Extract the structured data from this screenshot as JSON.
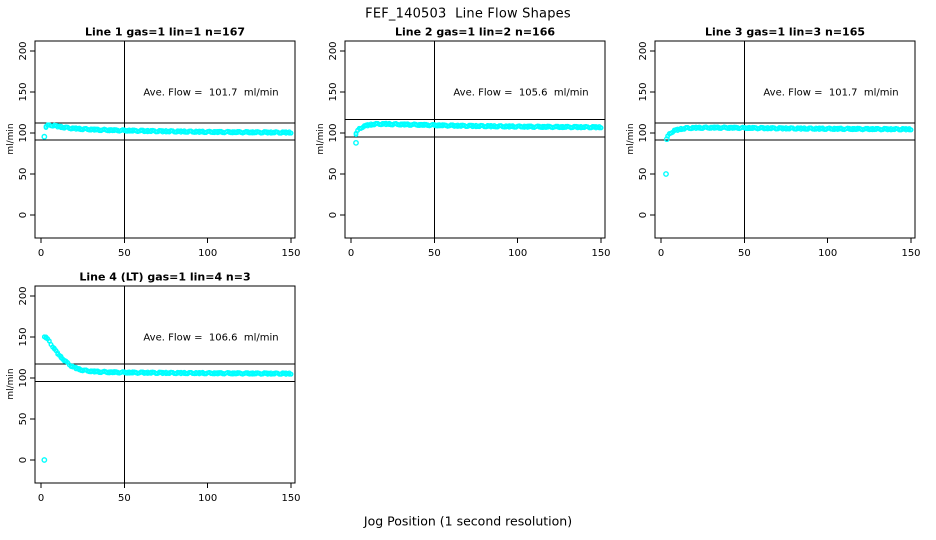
{
  "page": {
    "main_title": "FEF_140503  Line Flow Shapes",
    "x_axis_label": "Jog Position (1 second resolution)"
  },
  "colors": {
    "point": "#00ffff",
    "axis": "#000000",
    "background": "#ffffff",
    "text": "#000000"
  },
  "chart_data": [
    {
      "type": "scatter",
      "title": "Line 1 gas=1 lin=1 n=167",
      "annotation": "Ave. Flow =  101.7  ml/min",
      "ave_flow": 101.7,
      "ylabel": "ml/min",
      "row": 0,
      "col": 0,
      "xlim": [
        0,
        150
      ],
      "ylim": [
        0,
        200
      ],
      "x_ticks": [
        0,
        50,
        100,
        150
      ],
      "y_ticks": [
        0,
        50,
        100,
        150,
        200
      ],
      "vline_x": 50,
      "hlines": [
        111.9,
        91.5
      ],
      "outliers": [
        [
          2,
          95.5
        ]
      ],
      "band_x_start": 3,
      "band_x_end": 150,
      "profile": [
        [
          3,
          107.5
        ],
        [
          4,
          109
        ],
        [
          6,
          109.5
        ],
        [
          9,
          108.5
        ],
        [
          13,
          107
        ],
        [
          18,
          105.8
        ],
        [
          25,
          104.8
        ],
        [
          35,
          103.8
        ],
        [
          50,
          103
        ],
        [
          70,
          102.2
        ],
        [
          100,
          101.3
        ],
        [
          130,
          100.8
        ],
        [
          150,
          100.5
        ]
      ]
    },
    {
      "type": "scatter",
      "title": "Line 2 gas=1 lin=2 n=166",
      "annotation": "Ave. Flow =  105.6  ml/min",
      "ave_flow": 105.6,
      "ylabel": "ml/min",
      "row": 0,
      "col": 1,
      "xlim": [
        0,
        150
      ],
      "ylim": [
        0,
        200
      ],
      "x_ticks": [
        0,
        50,
        100,
        150
      ],
      "y_ticks": [
        0,
        50,
        100,
        150,
        200
      ],
      "vline_x": 50,
      "hlines": [
        116.2,
        95.0
      ],
      "outliers": [
        [
          3,
          88
        ]
      ],
      "band_x_start": 3,
      "band_x_end": 150,
      "profile": [
        [
          3,
          99
        ],
        [
          4,
          102.5
        ],
        [
          5,
          105
        ],
        [
          7,
          107.5
        ],
        [
          10,
          109.5
        ],
        [
          14,
          110.8
        ],
        [
          20,
          111
        ],
        [
          28,
          110.5
        ],
        [
          40,
          110
        ],
        [
          60,
          109
        ],
        [
          85,
          108.2
        ],
        [
          115,
          107.5
        ],
        [
          150,
          107
        ]
      ]
    },
    {
      "type": "scatter",
      "title": "Line 3 gas=1 lin=3 n=165",
      "annotation": "Ave. Flow =  101.7  ml/min",
      "ave_flow": 101.7,
      "ylabel": "ml/min",
      "row": 0,
      "col": 2,
      "xlim": [
        0,
        150
      ],
      "ylim": [
        0,
        200
      ],
      "x_ticks": [
        0,
        50,
        100,
        150
      ],
      "y_ticks": [
        0,
        50,
        100,
        150,
        200
      ],
      "vline_x": 50,
      "hlines": [
        111.9,
        91.5
      ],
      "outliers": [
        [
          3,
          50
        ],
        [
          3.5,
          92.5
        ]
      ],
      "band_x_start": 4,
      "band_x_end": 150,
      "profile": [
        [
          4,
          95.5
        ],
        [
          5,
          98.5
        ],
        [
          6,
          100.5
        ],
        [
          8,
          102.8
        ],
        [
          11,
          104.5
        ],
        [
          15,
          105.8
        ],
        [
          21,
          106.3
        ],
        [
          30,
          106.5
        ],
        [
          45,
          106.3
        ],
        [
          65,
          105.8
        ],
        [
          95,
          105.2
        ],
        [
          125,
          104.8
        ],
        [
          150,
          104.5
        ]
      ]
    },
    {
      "type": "scatter",
      "title": "Line 4 (LT) gas=1 lin=4 n=3",
      "annotation": "Ave. Flow =  106.6  ml/min",
      "ave_flow": 106.6,
      "ylabel": "ml/min",
      "row": 1,
      "col": 0,
      "xlim": [
        0,
        150
      ],
      "ylim": [
        0,
        200
      ],
      "x_ticks": [
        0,
        50,
        100,
        150
      ],
      "y_ticks": [
        0,
        50,
        100,
        150,
        200
      ],
      "vline_x": 50,
      "hlines": [
        117.3,
        95.9
      ],
      "outliers": [
        [
          2,
          0
        ]
      ],
      "band_x_start": 2,
      "band_x_end": 150,
      "profile": [
        [
          2,
          150.5
        ],
        [
          3,
          149.5
        ],
        [
          4,
          147
        ],
        [
          5,
          144.5
        ],
        [
          6,
          141.5
        ],
        [
          8,
          135.5
        ],
        [
          10,
          130
        ],
        [
          12,
          125.5
        ],
        [
          14,
          121.5
        ],
        [
          16,
          118
        ],
        [
          18,
          115
        ],
        [
          20,
          112.8
        ],
        [
          23,
          110.5
        ],
        [
          26,
          109.2
        ],
        [
          30,
          108.2
        ],
        [
          35,
          107.5
        ],
        [
          42,
          107
        ],
        [
          55,
          106.6
        ],
        [
          75,
          106.2
        ],
        [
          105,
          105.8
        ],
        [
          150,
          105.3
        ]
      ]
    }
  ]
}
